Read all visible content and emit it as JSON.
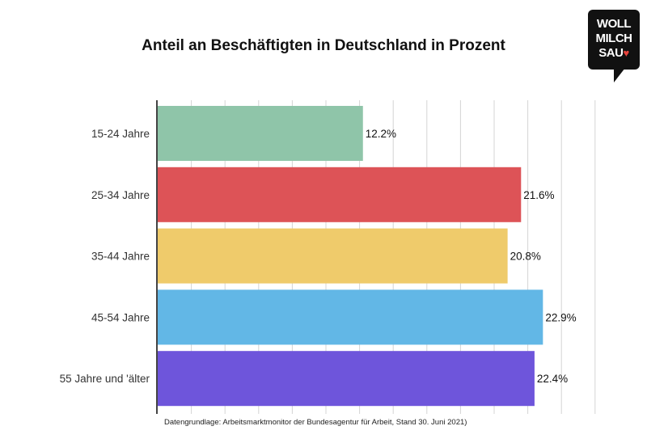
{
  "logo": {
    "line1": "WOLL",
    "line2": "MILCH",
    "line3": "SAU",
    "heart": "♥"
  },
  "chart_data": {
    "type": "bar",
    "orientation": "horizontal",
    "title": "Anteil an Beschäftigten in Deutschland in Prozent",
    "categories": [
      "15-24 Jahre",
      "25-34 Jahre",
      "35-44 Jahre",
      "45-54 Jahre",
      "55 Jahre und 'älter"
    ],
    "values": [
      12.2,
      21.6,
      20.8,
      22.9,
      22.4
    ],
    "data_labels": [
      "12.2%",
      "21.6%",
      "20.8%",
      "22.9%",
      "22.4%"
    ],
    "colors": [
      "#8fc5a9",
      "#dd5357",
      "#efcb6b",
      "#62b7e6",
      "#6e55db"
    ],
    "xlim": [
      0,
      26
    ],
    "grid": true,
    "xlabel": "",
    "ylabel": ""
  },
  "source": "Datengrundlage: Arbeitsmarktmonitor der Bundesagentur für Arbeit, Stand 30. Juni 2021)"
}
